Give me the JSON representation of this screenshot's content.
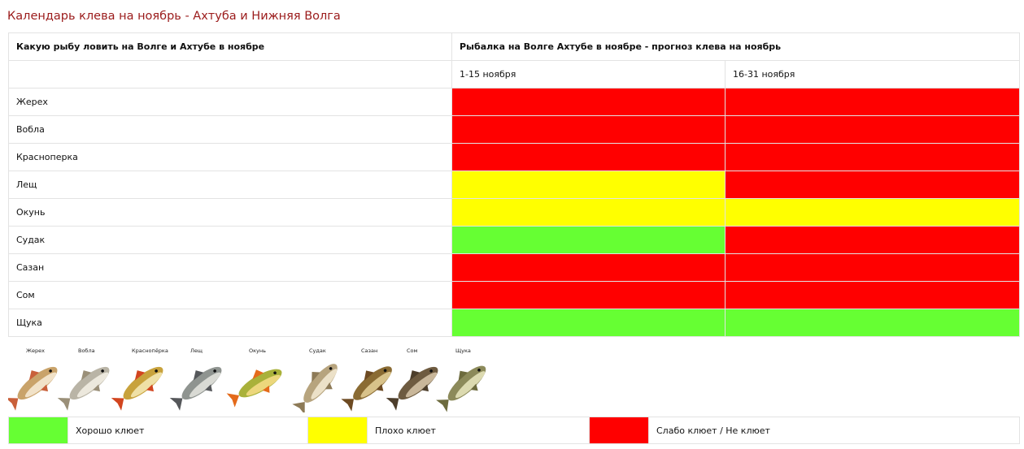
{
  "title": "Календарь клева на ноябрь - Ахтуба и Нижняя Волга",
  "table": {
    "col1_header": "Какую рыбу ловить на Волге и Ахтубе в ноябре",
    "col2_header": "Рыбалка на Волге Ахтубе в ноябре - прогноз клева на ноябрь",
    "period1": "1-15 ноября",
    "period2": "16-31 ноября",
    "rows": [
      {
        "fish": "Жерех",
        "p1": "weak",
        "p2": "weak"
      },
      {
        "fish": "Вобла",
        "p1": "weak",
        "p2": "weak"
      },
      {
        "fish": "Красноперка",
        "p1": "weak",
        "p2": "weak"
      },
      {
        "fish": "Лещ",
        "p1": "bad",
        "p2": "weak"
      },
      {
        "fish": "Окунь",
        "p1": "bad",
        "p2": "bad"
      },
      {
        "fish": "Судак",
        "p1": "good",
        "p2": "weak"
      },
      {
        "fish": "Сазан",
        "p1": "weak",
        "p2": "weak"
      },
      {
        "fish": "Сом",
        "p1": "weak",
        "p2": "weak"
      },
      {
        "fish": "Щука",
        "p1": "good",
        "p2": "good"
      }
    ]
  },
  "colors": {
    "good": "#66ff33",
    "bad": "#ffff00",
    "weak": "#ff0000"
  },
  "fish_images": [
    {
      "label": "Жерех",
      "icon": "asp-fish-icon"
    },
    {
      "label": "Вобла",
      "icon": "roach-fish-icon"
    },
    {
      "label": "Краснопёрка",
      "icon": "rudd-fish-icon"
    },
    {
      "label": "Лещ",
      "icon": "bream-fish-icon"
    },
    {
      "label": "Окунь",
      "icon": "perch-fish-icon"
    },
    {
      "label": "Судак",
      "icon": "zander-fish-icon"
    },
    {
      "label": "Сазан",
      "icon": "carp-fish-icon"
    },
    {
      "label": "Сом",
      "icon": "catfish-icon"
    },
    {
      "label": "Щука",
      "icon": "pike-fish-icon"
    }
  ],
  "legend": {
    "good_label": "Хорошо клюет",
    "bad_label": "Плохо клюет",
    "weak_label": "Слабо клюет / Не клюет"
  }
}
